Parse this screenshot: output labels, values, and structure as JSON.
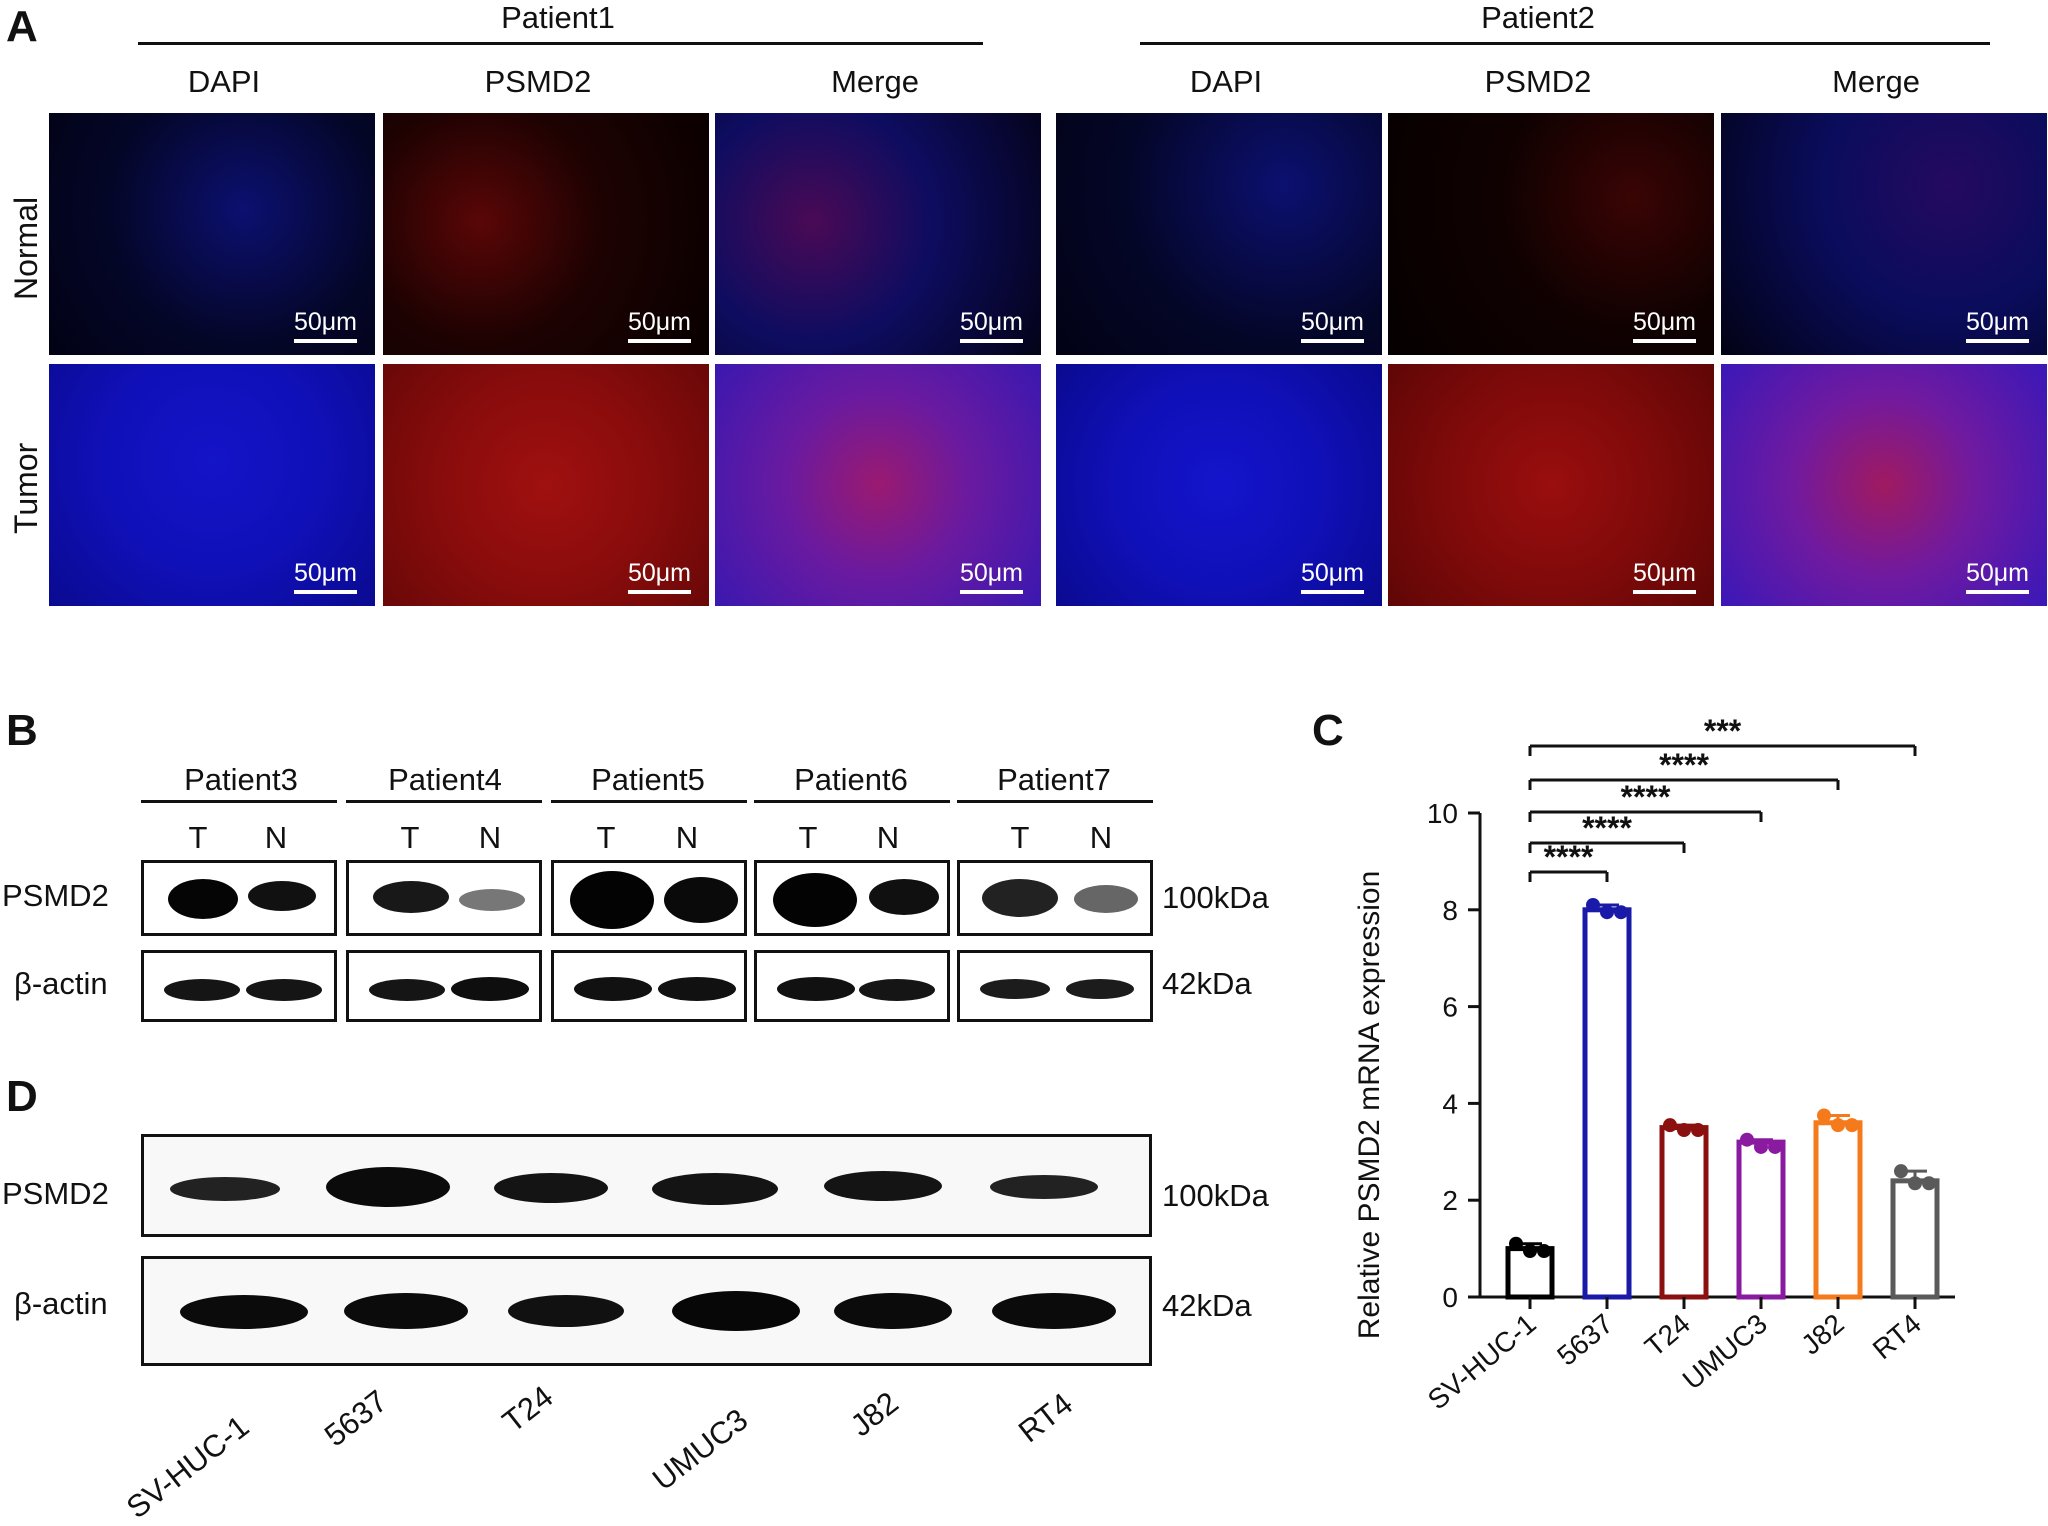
{
  "panel_a": {
    "letter": "A",
    "groups": [
      {
        "label": "Patient1",
        "columns": [
          "DAPI",
          "PSMD2",
          "Merge"
        ]
      },
      {
        "label": "Patient2",
        "columns": [
          "DAPI",
          "PSMD2",
          "Merge"
        ]
      }
    ],
    "rows": [
      "Normal",
      "Tumor"
    ],
    "scale_bar": "50μm"
  },
  "panel_b": {
    "letter": "B",
    "patients": [
      "Patient3",
      "Patient4",
      "Patient5",
      "Patient6",
      "Patient7"
    ],
    "lanes": [
      "T",
      "N"
    ],
    "rows": [
      "PSMD2",
      "β-actin"
    ],
    "sizes": [
      "100kDa",
      "42kDa"
    ]
  },
  "panel_d": {
    "letter": "D",
    "rows": [
      "PSMD2",
      "β-actin"
    ],
    "sizes": [
      "100kDa",
      "42kDa"
    ],
    "lanes": [
      "SV-HUC-1",
      "5637",
      "T24",
      "UMUC3",
      "J82",
      "RT4"
    ]
  },
  "panel_c": {
    "letter": "C",
    "chart_data": {
      "type": "bar",
      "categories": [
        "SV-HUC-1",
        "5637",
        "T24",
        "UMUC3",
        "J82",
        "RT4"
      ],
      "values": [
        1.0,
        8.0,
        3.5,
        3.2,
        3.6,
        2.4
      ],
      "points": [
        [
          1.1,
          0.95,
          0.95
        ],
        [
          8.1,
          7.95,
          7.95
        ],
        [
          3.55,
          3.45,
          3.45
        ],
        [
          3.25,
          3.1,
          3.1
        ],
        [
          3.75,
          3.55,
          3.55
        ],
        [
          2.6,
          2.35,
          2.35
        ]
      ],
      "colors": [
        "#000000",
        "#1a1aa8",
        "#8b1010",
        "#8a1aa0",
        "#f57a1c",
        "#5a5a5a"
      ],
      "ylabel": "Relative PSMD2 mRNA expression",
      "xlabel": "",
      "ylim": [
        0,
        10
      ],
      "yticks": [
        "0",
        "2",
        "4",
        "6",
        "8",
        "10"
      ],
      "significance": [
        {
          "from": "SV-HUC-1",
          "to": "5637",
          "label": "****"
        },
        {
          "from": "SV-HUC-1",
          "to": "T24",
          "label": "****"
        },
        {
          "from": "SV-HUC-1",
          "to": "UMUC3",
          "label": "****"
        },
        {
          "from": "SV-HUC-1",
          "to": "J82",
          "label": "****"
        },
        {
          "from": "SV-HUC-1",
          "to": "RT4",
          "label": "***"
        }
      ]
    }
  }
}
